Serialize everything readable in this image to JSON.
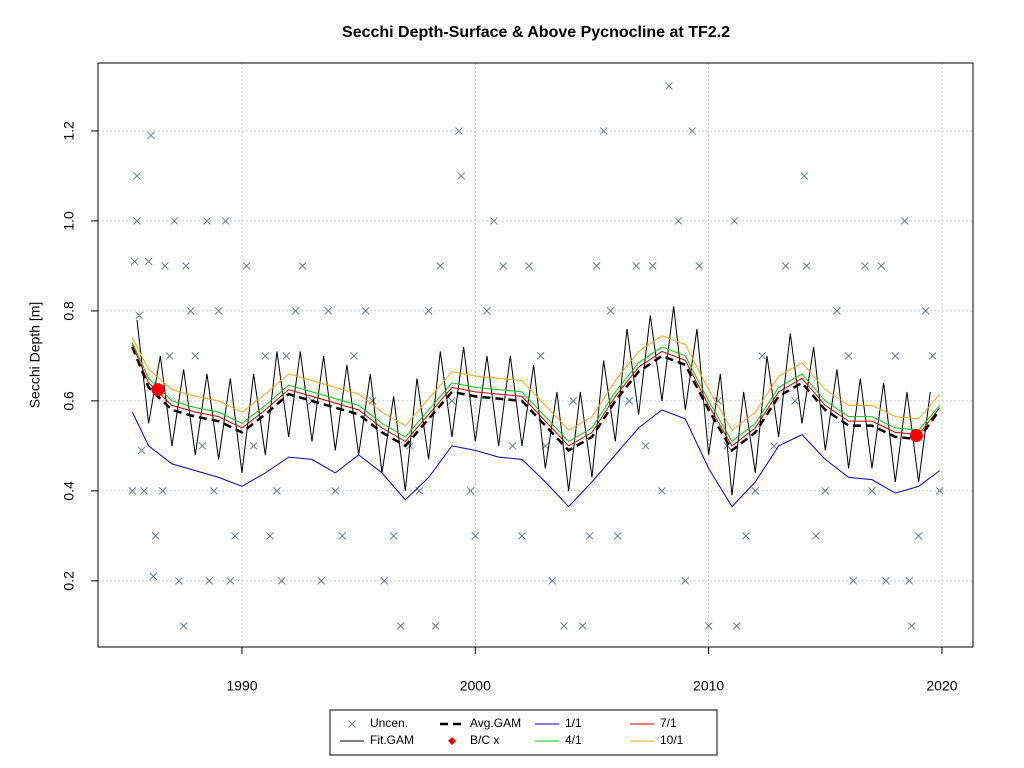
{
  "chart_data": {
    "type": "line",
    "title": "Secchi Depth-Surface & Above Pycnocline at TF2.2",
    "y_label": "Secchi Depth [m]",
    "xlim": [
      1983.83,
      2021.33
    ],
    "ylim": [
      0.053,
      1.351
    ],
    "xticks": [
      1990,
      2000,
      2010,
      2020
    ],
    "yticks": [
      0.2,
      0.4,
      0.6,
      0.8,
      {
        "value": 1,
        "label": "1.0"
      },
      1.2
    ],
    "grid": true,
    "legend": "bottom",
    "x": [
      1985.3,
      1986,
      1987,
      1988,
      1989,
      1990,
      1991,
      1992,
      1993,
      1994,
      1995,
      1996,
      1997,
      1998,
      1999,
      2000,
      2001,
      2002,
      2003,
      2004,
      2005,
      2006,
      2007,
      2008,
      2009,
      2010,
      2011,
      2012,
      2013,
      2014,
      2015,
      2016,
      2017,
      2018,
      2019,
      2019.9
    ],
    "series": [
      {
        "name": "Uncen.",
        "type": "scatter",
        "marker": "x",
        "color": "#6e7b8b",
        "x": [
          1985.3,
          1985.4,
          1985.5,
          1985.5,
          1985.6,
          1985.7,
          1985.8,
          1986.0,
          1986.1,
          1986.2,
          1986.3,
          1986.6,
          1986.7,
          1986.9,
          1987.1,
          1987.3,
          1987.5,
          1987.6,
          1987.8,
          1988.0,
          1988.3,
          1988.5,
          1988.6,
          1988.8,
          1989.0,
          1989.3,
          1989.5,
          1989.7,
          1990.2,
          1990.5,
          1991.0,
          1991.2,
          1991.5,
          1991.7,
          1991.9,
          1992.3,
          1992.6,
          1993.0,
          1993.4,
          1993.7,
          1994.0,
          1994.3,
          1994.8,
          1995.3,
          1995.6,
          1996.1,
          1996.5,
          1996.8,
          1997.2,
          1997.6,
          1998.0,
          1998.3,
          1998.5,
          1999.0,
          1999.3,
          1999.4,
          1999.8,
          2000.0,
          2000.5,
          2000.8,
          2001.2,
          2001.6,
          2002.0,
          2002.3,
          2002.8,
          2003.0,
          2003.3,
          2003.8,
          2004.2,
          2004.6,
          2004.9,
          2005.2,
          2005.5,
          2005.8,
          2006.1,
          2006.6,
          2006.9,
          2007.3,
          2007.6,
          2008.0,
          2008.3,
          2008.7,
          2009.0,
          2009.3,
          2009.6,
          2010.0,
          2010.4,
          2010.8,
          2011.1,
          2011.2,
          2011.6,
          2012.0,
          2012.3,
          2012.8,
          2013.3,
          2013.7,
          2014.1,
          2014.2,
          2014.6,
          2015.0,
          2015.5,
          2016.0,
          2016.2,
          2016.7,
          2017.0,
          2017.4,
          2017.6,
          2018.0,
          2018.4,
          2018.6,
          2018.7,
          2019.0,
          2019.3,
          2019.6,
          2019.9
        ],
        "values": [
          0.4,
          0.91,
          1.1,
          1.0,
          0.79,
          0.49,
          0.4,
          0.91,
          1.19,
          0.21,
          0.3,
          0.4,
          0.9,
          0.7,
          1.0,
          0.2,
          0.1,
          0.9,
          0.8,
          0.7,
          0.5,
          1.0,
          0.2,
          0.4,
          0.8,
          1.0,
          0.2,
          0.3,
          0.9,
          0.5,
          0.7,
          0.3,
          0.4,
          0.2,
          0.7,
          0.8,
          0.9,
          0.6,
          0.2,
          0.8,
          0.4,
          0.3,
          0.7,
          0.8,
          0.6,
          0.2,
          0.3,
          0.1,
          0.5,
          0.4,
          0.8,
          0.1,
          0.9,
          0.6,
          1.2,
          1.1,
          0.4,
          0.3,
          0.8,
          1.0,
          0.9,
          0.5,
          0.3,
          0.9,
          0.7,
          0.5,
          0.2,
          0.1,
          0.6,
          0.1,
          0.3,
          0.9,
          1.2,
          0.8,
          0.3,
          0.6,
          0.9,
          0.5,
          0.9,
          0.4,
          1.3,
          1.0,
          0.2,
          1.2,
          0.9,
          0.1,
          0.6,
          0.5,
          1.0,
          0.1,
          0.3,
          0.4,
          0.7,
          0.5,
          0.9,
          0.6,
          1.1,
          0.9,
          0.3,
          0.4,
          0.8,
          0.7,
          0.2,
          0.9,
          0.4,
          0.9,
          0.2,
          0.7,
          1.0,
          0.2,
          0.1,
          0.3,
          0.8,
          0.7,
          0.4
        ]
      },
      {
        "name": "Fit.GAM",
        "type": "line",
        "color": "#000000",
        "width": 1,
        "x": [
          1985.5,
          1986.0,
          1986.5,
          1987.0,
          1987.5,
          1988.0,
          1988.5,
          1989.0,
          1989.5,
          1990.0,
          1990.5,
          1991.0,
          1991.5,
          1992.0,
          1992.5,
          1993.0,
          1993.5,
          1994.0,
          1994.5,
          1995.0,
          1995.5,
          1996.0,
          1996.5,
          1997.0,
          1997.5,
          1998.0,
          1998.5,
          1999.0,
          1999.5,
          2000.0,
          2000.5,
          2001.0,
          2001.5,
          2002.0,
          2002.5,
          2003.0,
          2003.5,
          2004.0,
          2004.5,
          2005.0,
          2005.5,
          2006.0,
          2006.5,
          2007.0,
          2007.5,
          2008.0,
          2008.5,
          2009.0,
          2009.5,
          2010.0,
          2010.5,
          2011.0,
          2011.5,
          2012.0,
          2012.5,
          2013.0,
          2013.5,
          2014.0,
          2014.5,
          2015.0,
          2015.5,
          2016.0,
          2016.5,
          2017.0,
          2017.5,
          2018.0,
          2018.5,
          2019.0,
          2019.5
        ],
        "values": [
          0.78,
          0.55,
          0.7,
          0.5,
          0.67,
          0.48,
          0.66,
          0.47,
          0.65,
          0.44,
          0.66,
          0.48,
          0.71,
          0.52,
          0.71,
          0.51,
          0.7,
          0.49,
          0.68,
          0.48,
          0.66,
          0.44,
          0.61,
          0.4,
          0.65,
          0.47,
          0.71,
          0.52,
          0.72,
          0.51,
          0.7,
          0.5,
          0.7,
          0.5,
          0.68,
          0.45,
          0.62,
          0.4,
          0.62,
          0.43,
          0.69,
          0.51,
          0.76,
          0.57,
          0.79,
          0.6,
          0.81,
          0.58,
          0.76,
          0.48,
          0.66,
          0.39,
          0.62,
          0.44,
          0.7,
          0.52,
          0.75,
          0.55,
          0.72,
          0.49,
          0.67,
          0.45,
          0.65,
          0.45,
          0.64,
          0.42,
          0.62,
          0.42,
          0.62
        ]
      },
      {
        "name": "Avg.GAM",
        "type": "line",
        "color": "#000000",
        "width": 2.5,
        "dash": true,
        "values": [
          0.72,
          0.63,
          0.58,
          0.565,
          0.555,
          0.53,
          0.57,
          0.615,
          0.6,
          0.585,
          0.57,
          0.53,
          0.5,
          0.56,
          0.62,
          0.61,
          0.605,
          0.6,
          0.545,
          0.49,
          0.52,
          0.6,
          0.665,
          0.7,
          0.68,
          0.58,
          0.49,
          0.53,
          0.61,
          0.64,
          0.58,
          0.545,
          0.545,
          0.52,
          0.515,
          0.58
        ]
      },
      {
        "name": "B/C x",
        "type": "point",
        "color": "#ff0000",
        "x": [
          1986.4,
          2018.9
        ],
        "values": [
          0.625,
          0.523
        ]
      },
      {
        "name": "1/1",
        "type": "line",
        "color": "#0000cd",
        "width": 1,
        "values": [
          0.575,
          0.5,
          0.46,
          0.445,
          0.43,
          0.41,
          0.44,
          0.475,
          0.47,
          0.44,
          0.48,
          0.44,
          0.38,
          0.43,
          0.5,
          0.49,
          0.475,
          0.47,
          0.42,
          0.365,
          0.42,
          0.48,
          0.54,
          0.58,
          0.56,
          0.45,
          0.365,
          0.42,
          0.5,
          0.525,
          0.47,
          0.43,
          0.425,
          0.395,
          0.41,
          0.445
        ]
      },
      {
        "name": "4/1",
        "type": "line",
        "color": "#00cd00",
        "width": 1,
        "values": [
          0.73,
          0.65,
          0.6,
          0.585,
          0.575,
          0.55,
          0.59,
          0.635,
          0.62,
          0.605,
          0.59,
          0.55,
          0.52,
          0.58,
          0.64,
          0.63,
          0.625,
          0.62,
          0.565,
          0.51,
          0.54,
          0.62,
          0.685,
          0.72,
          0.7,
          0.6,
          0.51,
          0.55,
          0.63,
          0.66,
          0.6,
          0.565,
          0.565,
          0.54,
          0.535,
          0.59
        ]
      },
      {
        "name": "7/1",
        "type": "line",
        "color": "#cd0000",
        "width": 1,
        "values": [
          0.725,
          0.64,
          0.59,
          0.575,
          0.565,
          0.54,
          0.58,
          0.625,
          0.61,
          0.595,
          0.58,
          0.54,
          0.51,
          0.57,
          0.63,
          0.62,
          0.615,
          0.61,
          0.555,
          0.5,
          0.53,
          0.61,
          0.675,
          0.71,
          0.69,
          0.59,
          0.5,
          0.54,
          0.62,
          0.65,
          0.59,
          0.555,
          0.555,
          0.53,
          0.525,
          0.585
        ]
      },
      {
        "name": "10/1",
        "type": "line",
        "color": "#ffa500",
        "width": 1,
        "values": [
          0.74,
          0.67,
          0.625,
          0.61,
          0.6,
          0.575,
          0.615,
          0.66,
          0.645,
          0.63,
          0.615,
          0.575,
          0.545,
          0.605,
          0.665,
          0.655,
          0.65,
          0.645,
          0.59,
          0.535,
          0.565,
          0.645,
          0.71,
          0.745,
          0.725,
          0.625,
          0.535,
          0.575,
          0.655,
          0.685,
          0.625,
          0.59,
          0.59,
          0.565,
          0.56,
          0.615
        ]
      }
    ]
  }
}
